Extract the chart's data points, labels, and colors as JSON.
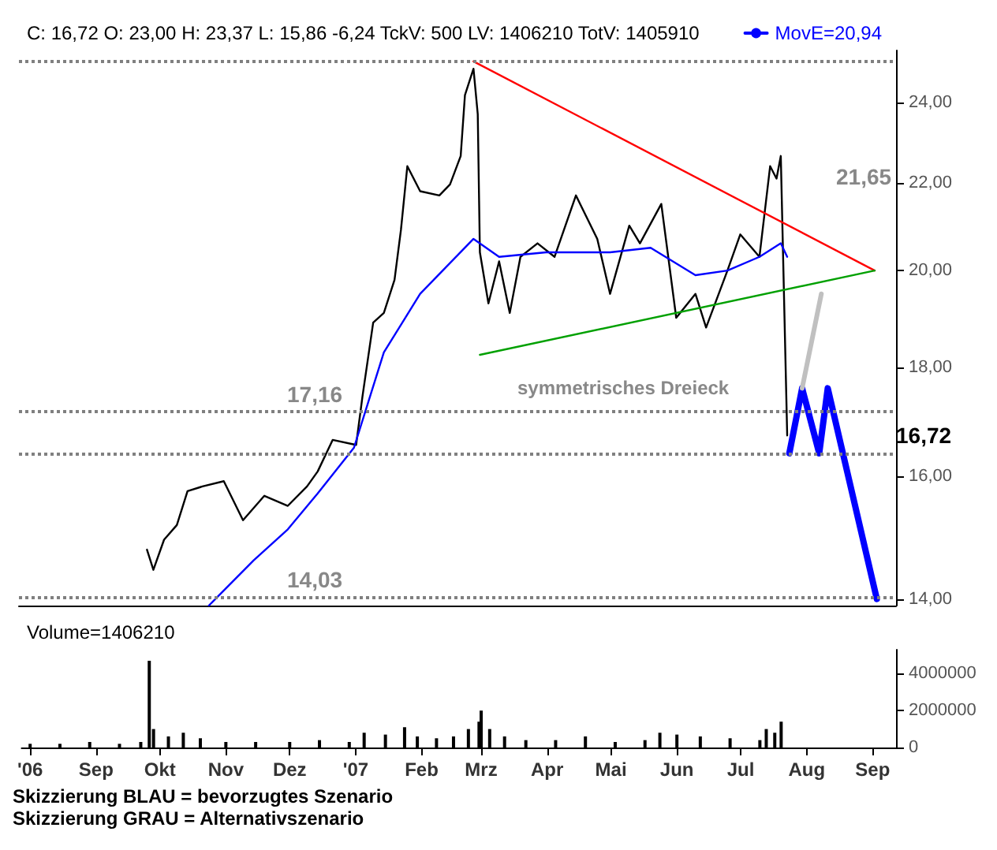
{
  "chart_data": [
    {
      "type": "line",
      "title": "C: 16,72 O: 23,00 H: 23,37 L: 15,86 -6,24 TckV: 500 LV: 1406210 TotV: 1405910",
      "log": true,
      "legend": "top right",
      "marker": "none",
      "grid": false,
      "tick_labels": "y",
      "xlim": [
        "2006-07-28",
        "2007-09-12"
      ],
      "ylim": [
        13.9,
        25.4
      ],
      "yticks": [
        {
          "value": 14,
          "label": "14,00"
        },
        {
          "value": 16,
          "label": "16,00"
        },
        {
          "value": 18,
          "label": "18,00"
        },
        {
          "value": 20,
          "label": "20,00"
        },
        {
          "value": 22,
          "label": "22,00"
        },
        {
          "value": 24,
          "label": "24,00"
        }
      ],
      "series": [
        {
          "color": "#000000",
          "x": [
            "2006-09-26",
            "2006-09-29",
            "2006-10-04",
            "2006-10-10",
            "2006-10-15",
            "2006-10-22",
            "2006-11-01",
            "2006-11-10",
            "2006-11-20",
            "2006-12-01",
            "2006-12-10",
            "2006-12-15",
            "2006-12-22",
            "2007-01-02",
            "2007-01-05",
            "2007-01-10",
            "2007-01-15",
            "2007-01-20",
            "2007-01-23",
            "2007-01-26",
            "2007-02-01",
            "2007-02-10",
            "2007-02-15",
            "2007-02-20",
            "2007-02-22",
            "2007-02-26",
            "2007-02-28",
            "2007-03-01",
            "2007-03-05",
            "2007-03-10",
            "2007-03-15",
            "2007-03-20",
            "2007-03-28",
            "2007-04-05",
            "2007-04-15",
            "2007-04-25",
            "2007-05-01",
            "2007-05-10",
            "2007-05-15",
            "2007-05-25",
            "2007-06-01",
            "2007-06-10",
            "2007-06-15",
            "2007-06-25",
            "2007-07-01",
            "2007-07-10",
            "2007-07-15",
            "2007-07-18",
            "2007-07-20",
            "2007-07-23"
          ],
          "values": [
            14.77,
            14.45,
            14.93,
            15.17,
            15.74,
            15.82,
            15.91,
            15.25,
            15.66,
            15.49,
            15.82,
            16.08,
            16.64,
            16.55,
            17.45,
            18.9,
            19.1,
            19.8,
            20.9,
            22.4,
            21.8,
            21.7,
            21.96,
            22.65,
            24.2,
            24.9,
            23.7,
            20.4,
            19.3,
            20.2,
            19.1,
            20.3,
            20.6,
            20.3,
            21.7,
            20.7,
            19.5,
            21.0,
            20.6,
            21.5,
            19.0,
            19.5,
            18.8,
            20.0,
            20.8,
            20.3,
            22.4,
            22.1,
            22.65,
            16.72
          ]
        },
        {
          "name": "MovE=20,94",
          "color": "#0000ff",
          "x": [
            "2006-10-25",
            "2006-11-15",
            "2006-12-01",
            "2006-12-15",
            "2007-01-01",
            "2007-01-15",
            "2007-02-01",
            "2007-02-26",
            "2007-03-10",
            "2007-04-01",
            "2007-05-01",
            "2007-05-20",
            "2007-06-10",
            "2007-06-25",
            "2007-07-10",
            "2007-07-20",
            "2007-07-23"
          ],
          "values": [
            13.9,
            14.6,
            15.1,
            15.7,
            16.5,
            18.3,
            19.5,
            20.7,
            20.3,
            20.4,
            20.4,
            20.5,
            19.9,
            20.0,
            20.3,
            20.6,
            20.3
          ]
        },
        {
          "color": "#ff0000",
          "x": [
            "2007-02-26",
            "2007-09-02"
          ],
          "values": [
            25.1,
            20.0
          ]
        },
        {
          "color": "#00a000",
          "x": [
            "2007-03-01",
            "2007-09-02"
          ],
          "values": [
            18.25,
            20.0
          ]
        },
        {
          "color": "#0000ff",
          "x": [
            "2007-07-24",
            "2007-07-30",
            "2007-08-07",
            "2007-08-11",
            "2007-09-03"
          ],
          "values": [
            16.4,
            17.6,
            16.4,
            17.6,
            14.0
          ]
        },
        {
          "color": "#c0c0c0",
          "x": [
            "2007-07-30",
            "2007-08-08"
          ],
          "values": [
            17.6,
            19.5
          ]
        }
      ],
      "ref_lines": [
        {
          "axis": "y",
          "value": 17.16,
          "label": "17,16",
          "color": "#808080",
          "line_style": "dotted"
        },
        {
          "axis": "y",
          "value": 14.03,
          "label": "14,03",
          "color": "#808080",
          "line_style": "dotted"
        },
        {
          "axis": "y",
          "value": 16.38,
          "color": "#808080",
          "line_style": "dotted"
        },
        {
          "axis": "y",
          "value": 25.1,
          "color": "#808080",
          "line_style": "dotted"
        }
      ],
      "annotations": [
        "21,65",
        "symmetrisches Dreieck",
        "16,72"
      ]
    },
    {
      "type": "bar",
      "title": "Volume=1406210",
      "color": "#000000",
      "grid": false,
      "legend": false,
      "x": [
        "2006-08-01",
        "2006-08-15",
        "2006-08-29",
        "2006-09-12",
        "2006-09-22",
        "2006-09-26",
        "2006-09-28",
        "2006-10-05",
        "2006-10-12",
        "2006-10-20",
        "2006-11-01",
        "2006-11-15",
        "2006-12-01",
        "2006-12-15",
        "2006-12-29",
        "2007-01-05",
        "2007-01-15",
        "2007-01-24",
        "2007-01-30",
        "2007-02-08",
        "2007-02-16",
        "2007-02-23",
        "2007-02-28",
        "2007-03-01",
        "2007-03-05",
        "2007-03-12",
        "2007-03-22",
        "2007-04-05",
        "2007-04-19",
        "2007-05-03",
        "2007-05-17",
        "2007-05-24",
        "2007-06-01",
        "2007-06-12",
        "2007-06-26",
        "2007-07-10",
        "2007-07-13",
        "2007-07-17",
        "2007-07-20"
      ],
      "values": [
        200000,
        200000,
        300000,
        200000,
        300000,
        4700000,
        1000000,
        600000,
        800000,
        500000,
        300000,
        300000,
        300000,
        400000,
        300000,
        800000,
        700000,
        1100000,
        600000,
        500000,
        600000,
        1000000,
        1400000,
        2000000,
        1000000,
        600000,
        400000,
        400000,
        600000,
        300000,
        400000,
        800000,
        700000,
        600000,
        500000,
        400000,
        1000000,
        800000,
        1400000
      ],
      "xlim": [
        "2006-07-28",
        "2007-09-12"
      ],
      "xticks": [
        {
          "value": "2006-08-01",
          "label": "'06"
        },
        {
          "value": "2006-09-01",
          "label": "Sep"
        },
        {
          "value": "2006-10-01",
          "label": "Okt"
        },
        {
          "value": "2006-11-01",
          "label": "Nov"
        },
        {
          "value": "2006-12-01",
          "label": "Dez"
        },
        {
          "value": "2007-01-01",
          "label": "'07"
        },
        {
          "value": "2007-02-01",
          "label": "Feb"
        },
        {
          "value": "2007-03-01",
          "label": "Mrz"
        },
        {
          "value": "2007-04-01",
          "label": "Apr"
        },
        {
          "value": "2007-05-01",
          "label": "Mai"
        },
        {
          "value": "2007-06-01",
          "label": "Jun"
        },
        {
          "value": "2007-07-01",
          "label": "Jul"
        },
        {
          "value": "2007-08-01",
          "label": "Aug"
        },
        {
          "value": "2007-09-01",
          "label": "Sep"
        }
      ],
      "ylim": [
        0,
        5300000
      ],
      "yticks": [
        0,
        2000000,
        4000000
      ],
      "annotations": [
        "Skizzierung BLAU = bevorzugtes Szenario",
        "Skizzierung GRAU = Alternativszenario"
      ]
    }
  ]
}
